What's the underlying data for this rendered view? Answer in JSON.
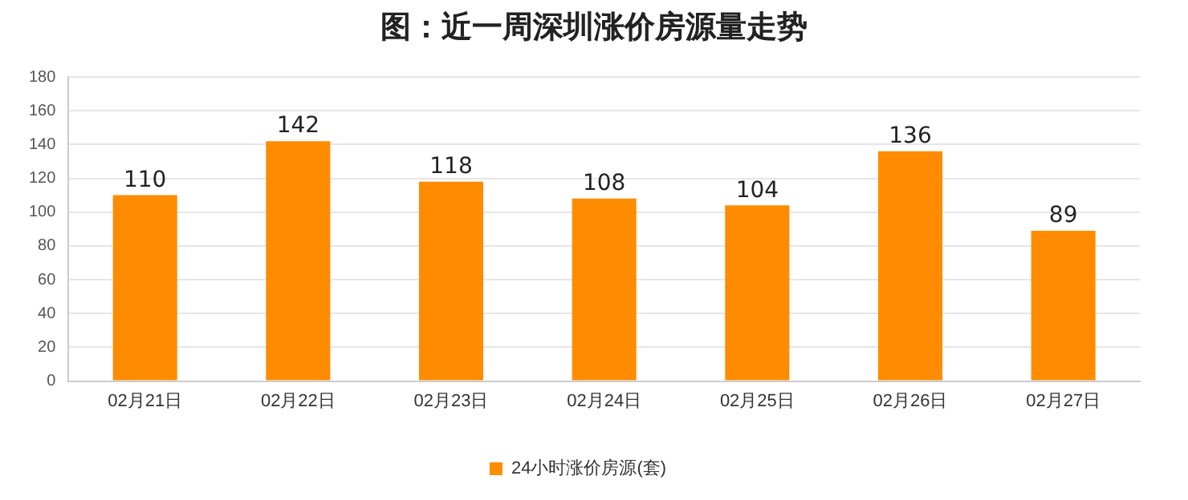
{
  "chart_data": {
    "type": "bar",
    "title": "图：近一周深圳涨价房源量走势",
    "categories": [
      "02月21日",
      "02月22日",
      "02月23日",
      "02月24日",
      "02月25日",
      "02月26日",
      "02月27日"
    ],
    "series": [
      {
        "name": "24小时涨价房源(套)",
        "color": "#ff8c00",
        "values": [
          110,
          142,
          118,
          108,
          104,
          136,
          89
        ]
      }
    ],
    "ylim": [
      0,
      180
    ],
    "yticks": [
      0,
      20,
      40,
      60,
      80,
      100,
      120,
      140,
      160,
      180
    ],
    "grid": "y",
    "legend": "bottom",
    "data_labels": true
  }
}
